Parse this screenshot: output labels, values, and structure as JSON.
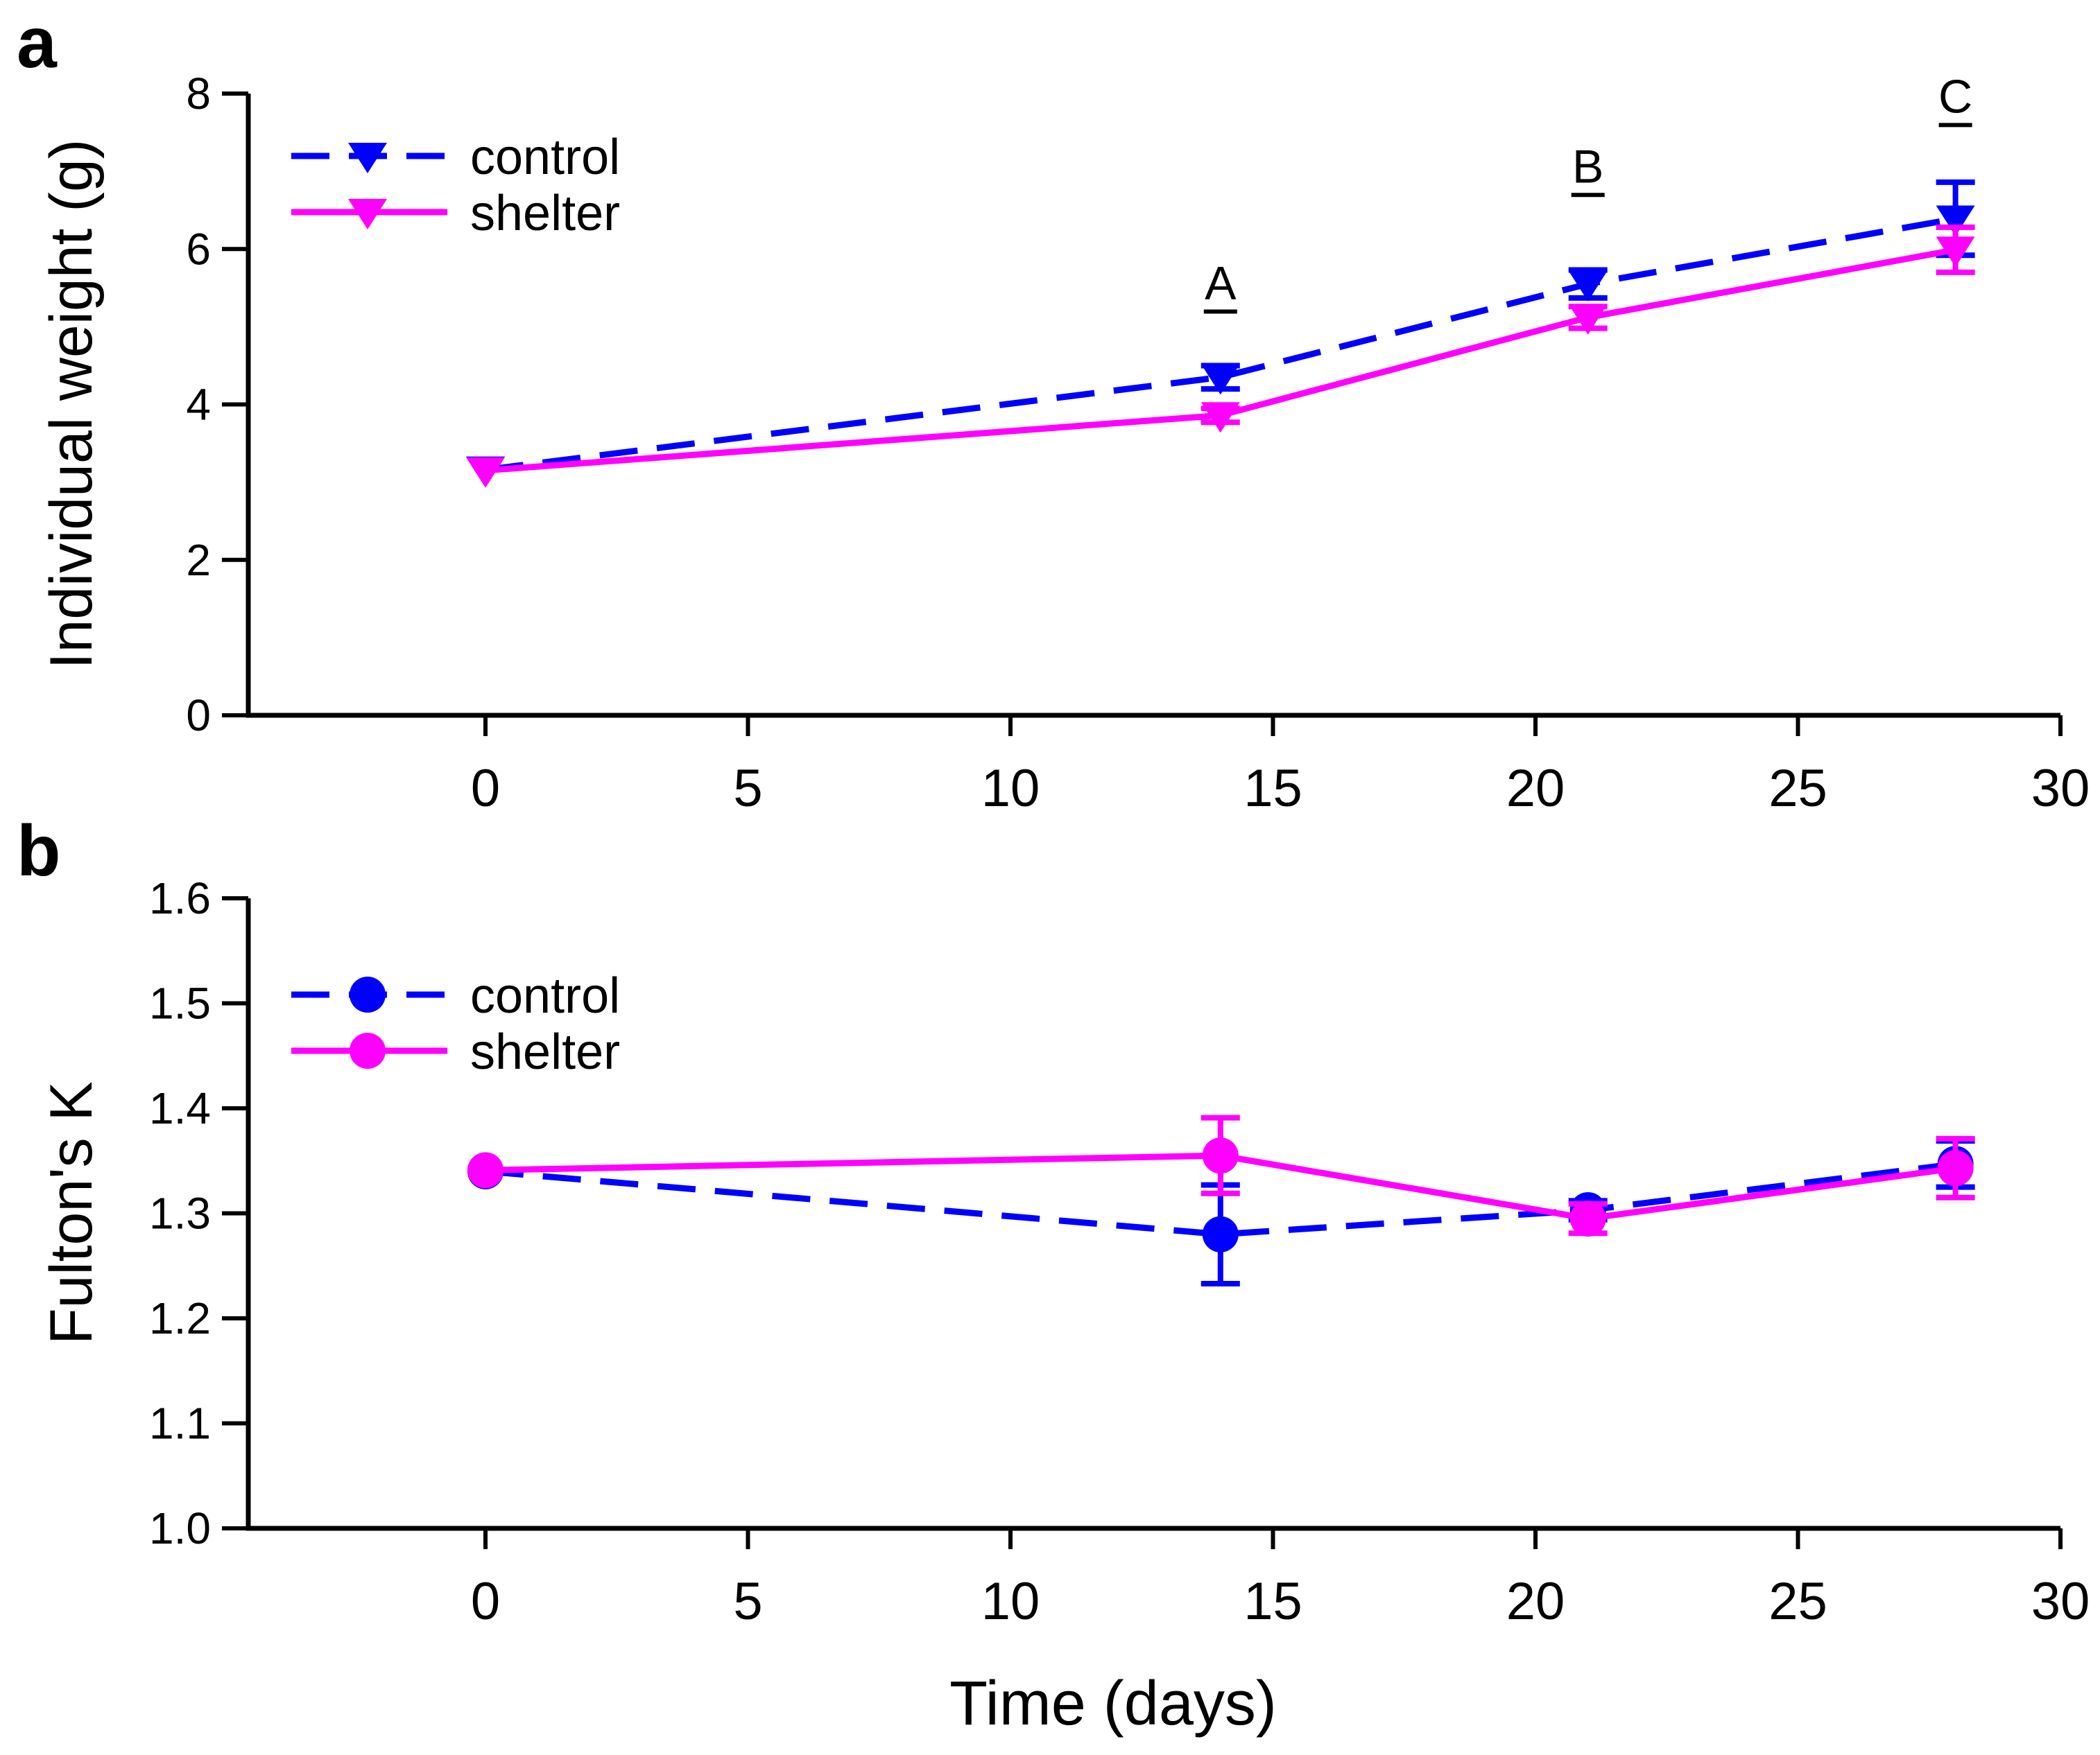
{
  "figure": {
    "background": "#ffffff",
    "x_axis_title": "Time (days)",
    "panels": [
      {
        "letter": "a",
        "y_axis_title": "Individual weight (g)"
      },
      {
        "letter": "b",
        "y_axis_title": "Fulton's K"
      }
    ],
    "colors": {
      "control": "#0000ff",
      "shelter": "#ff00ff",
      "axis": "#000000"
    }
  },
  "chart_data": [
    {
      "type": "line",
      "panel": "a",
      "title": "",
      "xlabel": "Time (days)",
      "ylabel": "Individual weight (g)",
      "xlim": [
        -4.5,
        30
      ],
      "ylim": [
        0,
        8
      ],
      "grid": false,
      "x_ticks": [
        0,
        5,
        10,
        15,
        20,
        25,
        30
      ],
      "x_tick_labels": [
        "0",
        "5",
        "10",
        "15",
        "20",
        "25",
        "30"
      ],
      "y_ticks": [
        0,
        2,
        4,
        6,
        8
      ],
      "y_tick_labels": [
        "0",
        "2",
        "4",
        "6",
        "8"
      ],
      "x": [
        0,
        14,
        21,
        28
      ],
      "series": [
        {
          "name": "control",
          "color": "#0000ff",
          "line_style": "dashed",
          "marker": "triangle-down",
          "values": [
            3.16,
            4.35,
            5.55,
            6.39
          ],
          "errors": [
            0,
            0.15,
            0.18,
            0.47
          ]
        },
        {
          "name": "shelter",
          "color": "#ff00ff",
          "line_style": "solid",
          "marker": "triangle-down",
          "values": [
            3.15,
            3.86,
            5.12,
            5.99
          ],
          "errors": [
            0,
            0.09,
            0.14,
            0.29
          ]
        }
      ],
      "annotations": [
        {
          "text": "A",
          "x": 14,
          "y": 5.57
        },
        {
          "text": "B",
          "x": 21,
          "y": 7.07
        },
        {
          "text": "C",
          "x": 28,
          "y": 7.97
        }
      ],
      "legend_position": "top-left",
      "legend_entries": [
        "control",
        "shelter"
      ]
    },
    {
      "type": "line",
      "panel": "b",
      "title": "",
      "xlabel": "Time (days)",
      "ylabel": "Fulton's K",
      "xlim": [
        -4.5,
        30
      ],
      "ylim": [
        1.0,
        1.6
      ],
      "grid": false,
      "x_ticks": [
        0,
        5,
        10,
        15,
        20,
        25,
        30
      ],
      "x_tick_labels": [
        "0",
        "5",
        "10",
        "15",
        "20",
        "25",
        "30"
      ],
      "y_ticks": [
        1.0,
        1.1,
        1.2,
        1.3,
        1.4,
        1.5,
        1.6
      ],
      "y_tick_labels": [
        "1.0",
        "1.1",
        "1.2",
        "1.3",
        "1.4",
        "1.5",
        "1.6"
      ],
      "x": [
        0,
        14,
        21,
        28
      ],
      "series": [
        {
          "name": "control",
          "color": "#0000ff",
          "line_style": "dashed",
          "marker": "circle",
          "values": [
            1.34,
            1.28,
            1.303,
            1.347
          ],
          "errors": [
            0,
            0.047,
            0.009,
            0.022
          ]
        },
        {
          "name": "shelter",
          "color": "#ff00ff",
          "line_style": "solid",
          "marker": "circle",
          "values": [
            1.341,
            1.355,
            1.295,
            1.343
          ],
          "errors": [
            0,
            0.036,
            0.014,
            0.028
          ]
        }
      ],
      "annotations": [],
      "legend_position": "top-left",
      "legend_entries": [
        "control",
        "shelter"
      ]
    }
  ]
}
